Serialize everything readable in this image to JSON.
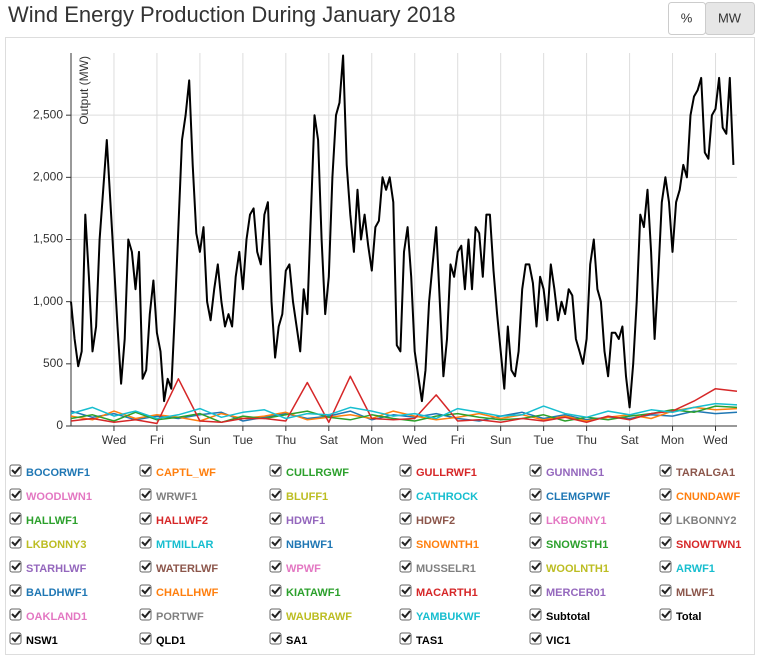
{
  "chart_data": {
    "type": "line",
    "title": "Wind Energy Production During January 2018",
    "y_label": "Output (MW)",
    "unit_buttons": [
      "%",
      "MW"
    ],
    "xlim": [
      0,
      744
    ],
    "ylim": [
      0,
      3000
    ],
    "grid": true,
    "xticks": [
      {
        "value": 48,
        "label": "Wed"
      },
      {
        "value": 96,
        "label": "Fri"
      },
      {
        "value": 144,
        "label": "Sun"
      },
      {
        "value": 192,
        "label": "Tue"
      },
      {
        "value": 240,
        "label": "Thu"
      },
      {
        "value": 288,
        "label": "Sat"
      },
      {
        "value": 336,
        "label": "Mon"
      },
      {
        "value": 384,
        "label": "Wed"
      },
      {
        "value": 432,
        "label": "Fri"
      },
      {
        "value": 480,
        "label": "Sun"
      },
      {
        "value": 528,
        "label": "Tue"
      },
      {
        "value": 576,
        "label": "Thu"
      },
      {
        "value": 624,
        "label": "Sat"
      },
      {
        "value": 672,
        "label": "Mon"
      },
      {
        "value": 720,
        "label": "Wed"
      }
    ],
    "yticks": [
      0,
      500,
      {
        "value": 1000,
        "label": "1,000"
      },
      {
        "value": 1500,
        "label": "1,500"
      },
      {
        "value": 2000,
        "label": "2,000"
      },
      {
        "value": 2500,
        "label": "2,500"
      }
    ],
    "series": [
      {
        "name": "BOCORWF1",
        "color": "#1f77b4",
        "x": [
          0,
          24,
          48,
          72,
          96,
          120,
          144,
          168,
          192,
          216,
          240,
          264,
          288,
          312,
          336,
          360,
          384,
          408,
          432,
          456,
          480,
          504,
          528,
          552,
          576,
          600,
          624,
          648,
          672,
          696,
          720,
          744
        ],
        "values": [
          120,
          70,
          100,
          50,
          80,
          60,
          90,
          110,
          40,
          70,
          100,
          60,
          80,
          120,
          50,
          90,
          70,
          100,
          60,
          40,
          80,
          110,
          60,
          90,
          50,
          70,
          60,
          90,
          80,
          120,
          100,
          110
        ]
      },
      {
        "name": "CAPTL_WF",
        "color": "#ff7f0e",
        "x": [
          0,
          24,
          48,
          72,
          96,
          120,
          144,
          168,
          192,
          216,
          240,
          264,
          288,
          312,
          336,
          360,
          384,
          408,
          432,
          456,
          480,
          504,
          528,
          552,
          576,
          600,
          624,
          648,
          672,
          696,
          720,
          744
        ],
        "values": [
          80,
          50,
          120,
          60,
          90,
          70,
          40,
          100,
          60,
          80,
          110,
          50,
          70,
          90,
          60,
          120,
          80,
          50,
          70,
          100,
          60,
          90,
          50,
          80,
          40,
          70,
          90,
          60,
          120,
          150,
          130,
          140
        ]
      },
      {
        "name": "CULLRGWF",
        "color": "#2ca02c",
        "x": [
          0,
          24,
          48,
          72,
          96,
          120,
          144,
          168,
          192,
          216,
          240,
          264,
          288,
          312,
          336,
          360,
          384,
          408,
          432,
          456,
          480,
          504,
          528,
          552,
          576,
          600,
          624,
          648,
          672,
          696,
          720,
          744
        ],
        "values": [
          60,
          90,
          40,
          110,
          50,
          70,
          100,
          30,
          80,
          60,
          90,
          120,
          70,
          50,
          90,
          60,
          40,
          80,
          100,
          70,
          50,
          60,
          90,
          40,
          70,
          50,
          80,
          100,
          130,
          110,
          160,
          150
        ]
      },
      {
        "name": "GULLRWF1",
        "color": "#d62728",
        "x": [
          0,
          24,
          48,
          72,
          96,
          120,
          144,
          168,
          192,
          216,
          240,
          264,
          288,
          312,
          336,
          360,
          384,
          408,
          432,
          456,
          480,
          504,
          528,
          552,
          576,
          600,
          624,
          648,
          672,
          696,
          720,
          744
        ],
        "values": [
          40,
          60,
          30,
          50,
          20,
          380,
          40,
          30,
          60,
          60,
          40,
          350,
          30,
          400,
          60,
          50,
          60,
          250,
          40,
          50,
          30,
          60,
          40,
          70,
          30,
          80,
          50,
          100,
          120,
          200,
          300,
          280
        ]
      },
      {
        "name": "GUNNING1",
        "color": "#9467bd"
      },
      {
        "name": "TARALGA1",
        "color": "#8c564b"
      },
      {
        "name": "WOODLWN1",
        "color": "#e377c2"
      },
      {
        "name": "WRWF1",
        "color": "#7f7f7f"
      },
      {
        "name": "BLUFF1",
        "color": "#bcbd22"
      },
      {
        "name": "CATHROCK",
        "color": "#17becf",
        "x": [
          0,
          24,
          48,
          72,
          96,
          120,
          144,
          168,
          192,
          216,
          240,
          264,
          288,
          312,
          336,
          360,
          384,
          408,
          432,
          456,
          480,
          504,
          528,
          552,
          576,
          600,
          624,
          648,
          672,
          696,
          720,
          744
        ],
        "values": [
          100,
          150,
          80,
          120,
          60,
          90,
          140,
          70,
          110,
          130,
          60,
          100,
          90,
          150,
          120,
          80,
          100,
          60,
          140,
          110,
          80,
          90,
          160,
          100,
          70,
          120,
          90,
          130,
          110,
          150,
          180,
          170
        ]
      },
      {
        "name": "CLEMGPWF",
        "color": "#1f77b4"
      },
      {
        "name": "CNUNDAWF",
        "color": "#ff7f0e"
      },
      {
        "name": "HALLWF1",
        "color": "#2ca02c"
      },
      {
        "name": "HALLWF2",
        "color": "#d62728"
      },
      {
        "name": "HDWF1",
        "color": "#9467bd"
      },
      {
        "name": "HDWF2",
        "color": "#8c564b"
      },
      {
        "name": "LKBONNY1",
        "color": "#e377c2"
      },
      {
        "name": "LKBONNY2",
        "color": "#7f7f7f"
      },
      {
        "name": "LKBONNY3",
        "color": "#bcbd22"
      },
      {
        "name": "MTMILLAR",
        "color": "#17becf"
      },
      {
        "name": "NBHWF1",
        "color": "#1f77b4"
      },
      {
        "name": "SNOWNTH1",
        "color": "#ff7f0e"
      },
      {
        "name": "SNOWSTH1",
        "color": "#2ca02c"
      },
      {
        "name": "SNOWTWN1",
        "color": "#d62728"
      },
      {
        "name": "STARHLWF",
        "color": "#9467bd"
      },
      {
        "name": "WATERLWF",
        "color": "#8c564b"
      },
      {
        "name": "WPWF",
        "color": "#e377c2"
      },
      {
        "name": "MUSSELR1",
        "color": "#7f7f7f"
      },
      {
        "name": "WOOLNTH1",
        "color": "#bcbd22"
      },
      {
        "name": "ARWF1",
        "color": "#17becf"
      },
      {
        "name": "BALDHWF1",
        "color": "#1f77b4"
      },
      {
        "name": "CHALLHWF",
        "color": "#ff7f0e"
      },
      {
        "name": "KIATAWF1",
        "color": "#2ca02c"
      },
      {
        "name": "MACARTH1",
        "color": "#d62728"
      },
      {
        "name": "MERCER01",
        "color": "#9467bd"
      },
      {
        "name": "MLWF1",
        "color": "#8c564b"
      },
      {
        "name": "OAKLAND1",
        "color": "#e377c2"
      },
      {
        "name": "PORTWF",
        "color": "#7f7f7f"
      },
      {
        "name": "WAUBRAWF",
        "color": "#bcbd22"
      },
      {
        "name": "YAMBUKWF",
        "color": "#17becf"
      },
      {
        "name": "Subtotal",
        "color": "#000000"
      },
      {
        "name": "Total",
        "color": "#000000",
        "x": [
          0,
          4,
          8,
          12,
          16,
          20,
          24,
          28,
          32,
          36,
          40,
          44,
          48,
          52,
          56,
          60,
          64,
          68,
          72,
          76,
          80,
          84,
          88,
          92,
          96,
          100,
          104,
          108,
          112,
          116,
          120,
          124,
          128,
          132,
          136,
          140,
          144,
          148,
          152,
          156,
          160,
          164,
          168,
          172,
          176,
          180,
          184,
          188,
          192,
          196,
          200,
          204,
          208,
          212,
          216,
          220,
          224,
          228,
          232,
          236,
          240,
          244,
          248,
          252,
          256,
          260,
          264,
          268,
          272,
          276,
          280,
          284,
          288,
          292,
          296,
          300,
          304,
          308,
          312,
          316,
          320,
          324,
          328,
          332,
          336,
          340,
          344,
          348,
          352,
          356,
          360,
          364,
          368,
          372,
          376,
          380,
          384,
          388,
          392,
          396,
          400,
          404,
          408,
          412,
          416,
          420,
          424,
          428,
          432,
          436,
          440,
          444,
          448,
          452,
          456,
          460,
          464,
          468,
          472,
          476,
          480,
          484,
          488,
          492,
          496,
          500,
          504,
          508,
          512,
          516,
          520,
          524,
          528,
          532,
          536,
          540,
          544,
          548,
          552,
          556,
          560,
          564,
          568,
          572,
          576,
          580,
          584,
          588,
          592,
          596,
          600,
          604,
          608,
          612,
          616,
          620,
          624,
          628,
          632,
          636,
          640,
          644,
          648,
          652,
          656,
          660,
          664,
          668,
          672,
          676,
          680,
          684,
          688,
          692,
          696,
          700,
          704,
          708,
          712,
          716,
          720,
          724,
          728,
          732,
          736,
          740
        ],
        "values": [
          1000,
          700,
          480,
          600,
          1700,
          1200,
          600,
          800,
          1500,
          1900,
          2300,
          1800,
          1300,
          800,
          340,
          700,
          1500,
          1400,
          1100,
          1400,
          380,
          450,
          900,
          1170,
          750,
          600,
          200,
          380,
          300,
          900,
          1600,
          2300,
          2500,
          2780,
          2100,
          1550,
          1400,
          1600,
          1000,
          850,
          1100,
          1300,
          1000,
          800,
          900,
          800,
          1200,
          1400,
          1100,
          1500,
          1700,
          1750,
          1400,
          1300,
          1700,
          1800,
          1000,
          550,
          800,
          900,
          1250,
          1300,
          1000,
          800,
          600,
          1100,
          900,
          1700,
          2500,
          2300,
          1500,
          900,
          1200,
          2000,
          2500,
          2600,
          2980,
          2100,
          1700,
          1400,
          1900,
          1500,
          1700,
          1450,
          1250,
          1600,
          1650,
          2000,
          1900,
          2000,
          1800,
          650,
          600,
          1400,
          1600,
          1200,
          600,
          400,
          200,
          450,
          1000,
          1300,
          1600,
          1000,
          400,
          700,
          1300,
          1200,
          1400,
          1450,
          1100,
          1500,
          1100,
          1600,
          1550,
          1200,
          1700,
          1700,
          1250,
          900,
          600,
          300,
          800,
          450,
          400,
          600,
          1100,
          1300,
          1300,
          1150,
          800,
          1200,
          1100,
          850,
          1300,
          1100,
          850,
          1000,
          900,
          1100,
          1050,
          700,
          600,
          500,
          700,
          1300,
          1500,
          1100,
          1000,
          600,
          400,
          750,
          750,
          700,
          800,
          400,
          150,
          500,
          1000,
          1700,
          1600,
          1900,
          1400,
          700,
          1200,
          1800,
          2000,
          1800,
          1400,
          1800,
          1900,
          2100,
          2000,
          2500,
          2650,
          2700,
          2800,
          2200,
          2150,
          2500,
          2550,
          2800,
          2400,
          2350,
          2800,
          2100
        ]
      },
      {
        "name": "NSW1",
        "color": "#000000"
      },
      {
        "name": "QLD1",
        "color": "#000000"
      },
      {
        "name": "SA1",
        "color": "#000000"
      },
      {
        "name": "TAS1",
        "color": "#000000"
      },
      {
        "name": "VIC1",
        "color": "#000000"
      }
    ]
  }
}
